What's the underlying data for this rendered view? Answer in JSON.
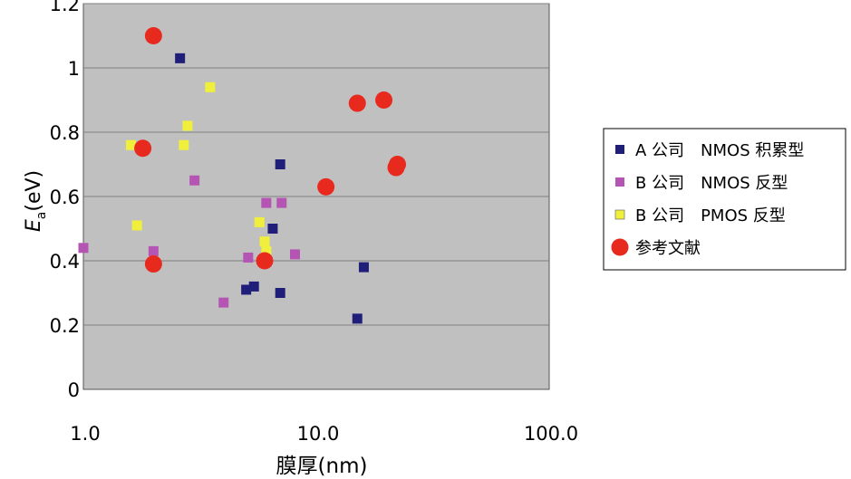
{
  "chart_data": {
    "type": "scatter",
    "title": "",
    "xlabel": "膜厚(nm)",
    "ylabel_main": "E",
    "ylabel_sub": "a",
    "ylabel_tail": "(eV)",
    "x_scale": "log",
    "xlim": [
      1,
      100
    ],
    "ylim": [
      0,
      1.2
    ],
    "x_ticks": [
      {
        "value": 1,
        "label": "1.0"
      },
      {
        "value": 10,
        "label": "10.0"
      },
      {
        "value": 100,
        "label": "100.0"
      }
    ],
    "y_ticks": [
      {
        "value": 0,
        "label": "0"
      },
      {
        "value": 0.2,
        "label": "0.2"
      },
      {
        "value": 0.4,
        "label": "0.4"
      },
      {
        "value": 0.6,
        "label": "0.6"
      },
      {
        "value": 0.8,
        "label": "0.8"
      },
      {
        "value": 1.0,
        "label": "1"
      },
      {
        "value": 1.2,
        "label": "1.2"
      }
    ],
    "grid": "horizontal",
    "plot_background": "#c0c0c0",
    "legend_position": "right",
    "series": [
      {
        "name": "A 公司　NMOS 积累型",
        "marker": "square",
        "color": "#1f1f7a",
        "points": [
          [
            2.6,
            1.03
          ],
          [
            7.0,
            0.7
          ],
          [
            6.5,
            0.5
          ],
          [
            5.0,
            0.31
          ],
          [
            5.4,
            0.32
          ],
          [
            7.0,
            0.3
          ],
          [
            16.0,
            0.38
          ],
          [
            15.0,
            0.22
          ]
        ]
      },
      {
        "name": "B 公司　NMOS 反型",
        "marker": "square",
        "color": "#b455b4",
        "points": [
          [
            1.0,
            0.44
          ],
          [
            2.0,
            0.43
          ],
          [
            3.0,
            0.65
          ],
          [
            4.0,
            0.27
          ],
          [
            5.1,
            0.41
          ],
          [
            6.1,
            0.58
          ],
          [
            7.1,
            0.58
          ],
          [
            8.1,
            0.42
          ]
        ]
      },
      {
        "name": "B 公司　PMOS 反型",
        "marker": "square",
        "color": "#f0f03c",
        "points": [
          [
            1.6,
            0.76
          ],
          [
            1.7,
            0.51
          ],
          [
            2.7,
            0.76
          ],
          [
            2.8,
            0.82
          ],
          [
            3.5,
            0.94
          ],
          [
            5.7,
            0.52
          ],
          [
            6.0,
            0.46
          ],
          [
            6.1,
            0.43
          ]
        ]
      },
      {
        "name": "参考文献",
        "marker": "circle",
        "color": "#e8291e",
        "points": [
          [
            2.0,
            1.1
          ],
          [
            1.8,
            0.75
          ],
          [
            2.0,
            0.39
          ],
          [
            6.0,
            0.4
          ],
          [
            11.0,
            0.63
          ],
          [
            15.0,
            0.89
          ],
          [
            19.5,
            0.9
          ],
          [
            22.0,
            0.69
          ],
          [
            22.3,
            0.7
          ]
        ]
      }
    ]
  }
}
